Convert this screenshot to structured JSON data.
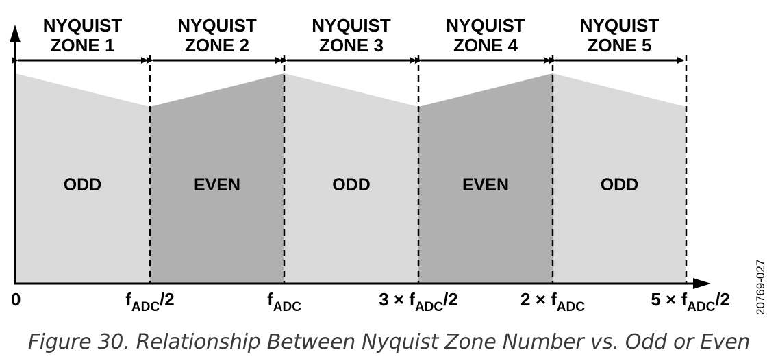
{
  "colors": {
    "odd_fill": "#dadada",
    "even_fill": "#b0b0b0",
    "line": "#000000"
  },
  "zones": [
    {
      "title_line1": "NYQUIST",
      "title_line2": "ZONE 1",
      "label": "ODD",
      "parity": "odd"
    },
    {
      "title_line1": "NYQUIST",
      "title_line2": "ZONE 2",
      "label": "EVEN",
      "parity": "even"
    },
    {
      "title_line1": "NYQUIST",
      "title_line2": "ZONE 3",
      "label": "ODD",
      "parity": "odd"
    },
    {
      "title_line1": "NYQUIST",
      "title_line2": "ZONE 4",
      "label": "EVEN",
      "parity": "even"
    },
    {
      "title_line1": "NYQUIST",
      "title_line2": "ZONE 5",
      "label": "ODD",
      "parity": "odd"
    }
  ],
  "axis_ticks": [
    {
      "prefix": "0",
      "main": "",
      "sub": "",
      "suffix": ""
    },
    {
      "prefix": "",
      "main": "f",
      "sub": "ADC",
      "suffix": "/2"
    },
    {
      "prefix": "",
      "main": "f",
      "sub": "ADC",
      "suffix": ""
    },
    {
      "prefix": "3 × ",
      "main": "f",
      "sub": "ADC",
      "suffix": "/2"
    },
    {
      "prefix": "2 × ",
      "main": "f",
      "sub": "ADC",
      "suffix": ""
    },
    {
      "prefix": "5 × ",
      "main": "f",
      "sub": "ADC",
      "suffix": "/2"
    }
  ],
  "figure_id": "20769-027",
  "caption": "Figure 30. Relationship Between Nyquist Zone Number vs. Odd or Even"
}
